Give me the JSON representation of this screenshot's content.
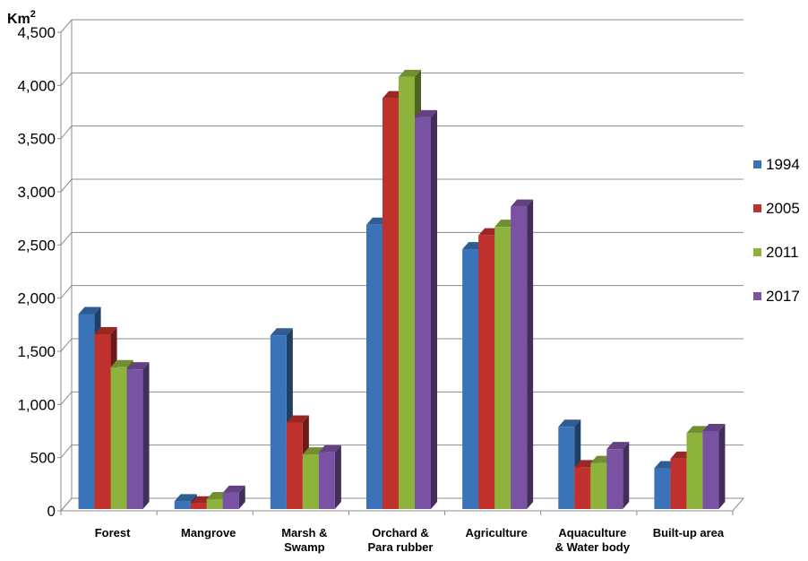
{
  "chart_data": {
    "type": "bar",
    "title": "",
    "ylabel": "",
    "unit_label": "Km",
    "unit_superscript": "2",
    "ylim": [
      0,
      4500
    ],
    "ytick_step": 500,
    "ytick_labels": [
      "0",
      "500",
      "1,000",
      "1,500",
      "2,000",
      "2,500",
      "3,000",
      "3,500",
      "4,000",
      "4,500"
    ],
    "categories": [
      [
        "Forest"
      ],
      [
        "Mangrove"
      ],
      [
        "Marsh &",
        "Swamp"
      ],
      [
        "Orchard &",
        "Para rubber"
      ],
      [
        "Agriculture"
      ],
      [
        "Aquaculture",
        "& Water body"
      ],
      [
        "Built-up area"
      ]
    ],
    "series": [
      {
        "name": "1994",
        "color": "#3A73B8",
        "values": [
          1850,
          90,
          1650,
          2690,
          2460,
          790,
          400
        ]
      },
      {
        "name": "2005",
        "color": "#C0312D",
        "values": [
          1660,
          70,
          830,
          3880,
          2590,
          410,
          490
        ]
      },
      {
        "name": "2011",
        "color": "#8DB33C",
        "values": [
          1350,
          110,
          530,
          4080,
          2670,
          450,
          730
        ]
      },
      {
        "name": "2017",
        "color": "#7A52A3",
        "values": [
          1330,
          170,
          550,
          3700,
          2860,
          580,
          750
        ]
      }
    ],
    "grid": true,
    "legend_position": "right",
    "style": "3d-clustered-column"
  }
}
